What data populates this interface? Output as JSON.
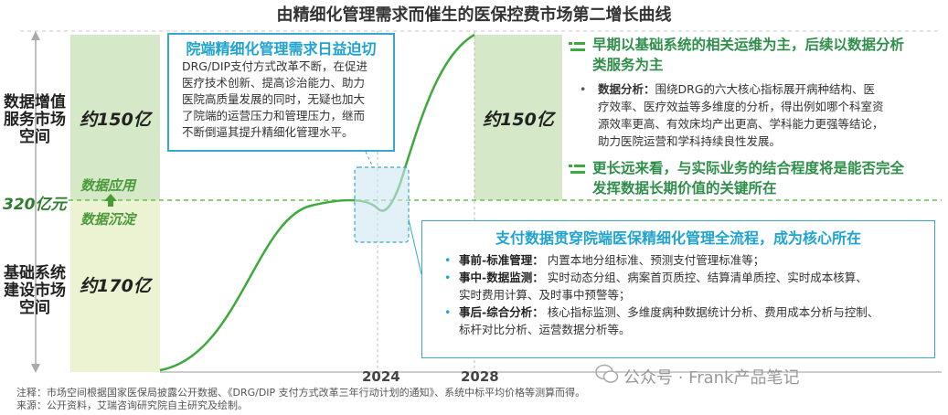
{
  "title": "由精细化管理需求而催生的医保控费市场第二增长曲线",
  "chart_data": {
    "type": "line",
    "x_labels": [
      "2024",
      "2028"
    ],
    "y_marker": "320亿元",
    "segments": [
      {
        "label": "基础系统建设市场空间",
        "value": "约170亿",
        "stage": "数据沉淀"
      },
      {
        "label": "数据增值服务市场空间",
        "value": "约150亿",
        "stage": "数据应用"
      }
    ],
    "right_value": "约150亿"
  },
  "left_top_label": [
    "数据增值",
    "服务市场",
    "空间"
  ],
  "left_bottom_label": [
    "基础系统",
    "建设市场",
    "空间"
  ],
  "y_marker": "320亿元",
  "value_top": "约150亿",
  "value_bottom": "约170亿",
  "value_right": "约150亿",
  "stage_top": "数据应用",
  "stage_bottom": "数据沉淀",
  "year1": "2024",
  "year2": "2028",
  "callout1": {
    "title": "院端精细化管理需求日益迫切",
    "lines": [
      "DRG/DIP支付方式改革不断，在促进",
      "医疗技术创新、提高诊治能力、助力",
      "医院高质量发展的同时，无疑也加大",
      "了院端的运营压力和管理压力，继而",
      "不断倒逼其提升精细化管理水平。"
    ]
  },
  "right_top": {
    "heading1": [
      "早期以基础系统的相关运维为主，后续以数据分析",
      "类服务为主"
    ],
    "bullet_label": "数据分析：",
    "bullet_lines": [
      "围绕DRG的六大核心指标展开病种结构、医",
      "疗效率、医疗效益等多维度的分析，得出例如哪个科室资",
      "源效率更高、有效床均产出更高、学科能力更强等结论，",
      "助力医院运营和学科持续良性发展。"
    ],
    "heading2": [
      "更长远来看，与实际业务的结合程度将是能否完全",
      "发挥数据长期价值的关键所在"
    ]
  },
  "callout2": {
    "title": "支付数据贯穿院端医保精细化管理全流程，成为核心所在",
    "items": [
      {
        "label": "事前-标准管理：",
        "lines": [
          "内置本地分组标准、预测支付管理标准等；"
        ]
      },
      {
        "label": "事中-数据监测：",
        "lines": [
          "实时动态分组、病案首页质控、结算清单质控、实时成本核算、",
          "实时费用计算、及时事中预警等；"
        ]
      },
      {
        "label": "事后-综合分析：",
        "lines": [
          "核心指标监测、多维度病种数据统计分析、费用成本分析与控制、",
          "标杆对比分析、运营数据分析等。"
        ]
      }
    ]
  },
  "footnote1": "注释：市场空间根据国家医保局披露公开数据、《DRG/DIP 支付方式改革三年行动计划的通知》、系统中标平均价格等测算而得。",
  "footnote2": "来源：公开资料，艾瑞咨询研究院自主研究及绘制。",
  "watermark": "公众号 · Frank产品笔记",
  "colors": {
    "accent": "#1fa3d0",
    "green": "#3daa3d",
    "green_box": "#d5e8c7",
    "yellow_box": "#ecf3d3"
  }
}
